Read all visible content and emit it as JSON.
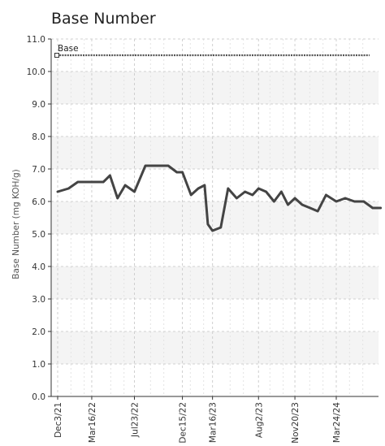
{
  "chart_data": {
    "type": "line",
    "title": "Base Number",
    "ylabel": "Base Number (mg KOH/g)",
    "xlabel": "",
    "ylim": [
      0,
      11
    ],
    "y_ticks": [
      "0.0",
      "1.0",
      "2.0",
      "3.0",
      "4.0",
      "5.0",
      "6.0",
      "7.0",
      "8.0",
      "9.0",
      "10.0",
      "11.0"
    ],
    "x_ticks": [
      "Dec3/21",
      "Mar16/22",
      "Jul23/22",
      "Dec15/22",
      "Mar16/23",
      "Aug2/23",
      "Nov20/23",
      "Mar24/24"
    ],
    "grid": true,
    "series": [
      {
        "name": "",
        "color": "#444444",
        "x": [
          "Dec3/21",
          "Jan5/22",
          "Feb2/22",
          "Mar16/22",
          "Apr20/22",
          "May10/22",
          "Jun2/22",
          "Jun25/22",
          "Jul23/22",
          "Aug25/22",
          "Sep28/22",
          "Nov2/22",
          "Nov28/22",
          "Dec15/22",
          "Jan10/23",
          "Feb1/23",
          "Feb20/23",
          "Mar2/23",
          "Mar16/23",
          "Apr10/23",
          "May2/23",
          "May28/23",
          "Jun22/23",
          "Jul15/23",
          "Aug2/23",
          "Aug25/23",
          "Sep18/23",
          "Oct10/23",
          "Oct30/23",
          "Nov20/23",
          "Dec12/23",
          "Jan5/24",
          "Jan28/24",
          "Feb22/24",
          "Mar24/24",
          "Apr20/24",
          "May18/24",
          "Jun15/24",
          "Jul12/24",
          "Aug5/24"
        ],
        "values": [
          6.3,
          6.4,
          6.6,
          6.6,
          6.6,
          6.8,
          6.1,
          6.5,
          6.3,
          7.1,
          7.1,
          7.1,
          6.9,
          6.9,
          6.2,
          6.4,
          6.5,
          5.3,
          5.1,
          5.2,
          6.4,
          6.1,
          6.3,
          6.2,
          6.4,
          6.3,
          6.0,
          6.3,
          5.9,
          6.1,
          5.9,
          5.8,
          5.7,
          6.2,
          6.0,
          6.1,
          6.0,
          6.0,
          5.8,
          5.8
        ]
      }
    ],
    "reference_lines": [
      {
        "name": "Base",
        "value": 10.5,
        "color": "#555555"
      }
    ]
  }
}
